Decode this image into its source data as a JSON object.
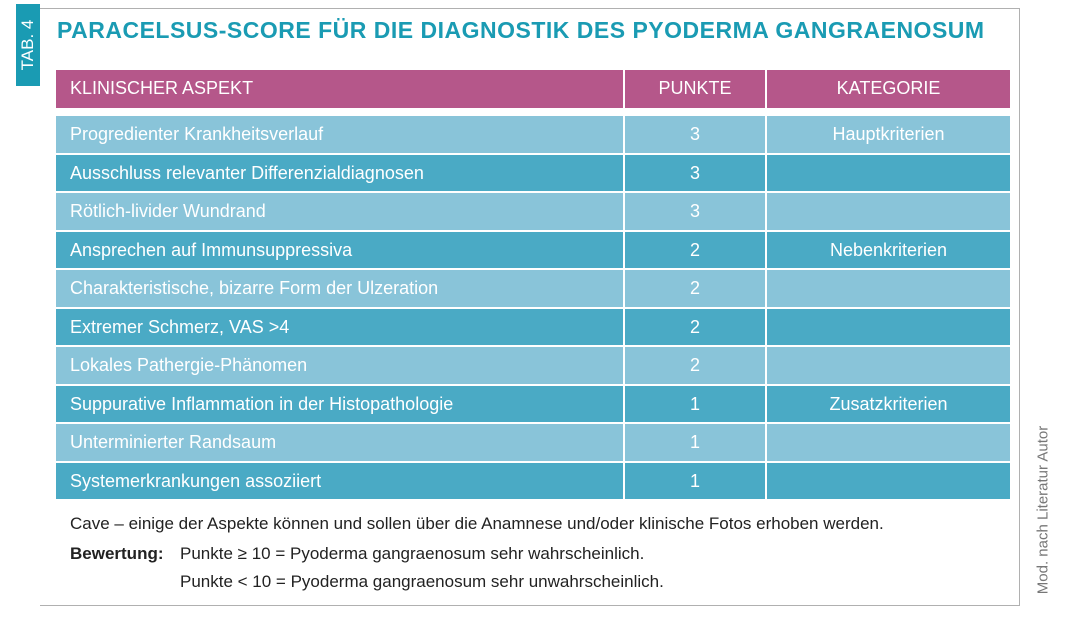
{
  "tab_label": "TAB. 4",
  "title": "PARACELSUS-SCORE FÜR DIE DIAGNOSTIK DES PYODERMA GANGRAENOSUM",
  "table": {
    "header": [
      "KLINISCHER ASPEKT",
      "PUNKTE",
      "KATEGORIE"
    ],
    "rows": [
      [
        "Progredienter Krankheitsverlauf",
        3,
        "Hauptkriterien"
      ],
      [
        "Ausschluss relevanter Differenzialdiagnosen",
        3,
        null
      ],
      [
        "Rötlich-livider Wundrand",
        3,
        null
      ],
      [
        "Ansprechen auf Immunsuppressiva",
        2,
        "Nebenkriterien"
      ],
      [
        "Charakteristische, bizarre Form der Ulzeration",
        2,
        null
      ],
      [
        "Extremer Schmerz, VAS >4",
        2,
        null
      ],
      [
        "Lokales Pathergie-Phänomen",
        2,
        null
      ],
      [
        "Suppurative Inflammation in der Histopathologie",
        1,
        "Zusatzkriterien"
      ],
      [
        "Unterminierter Randsaum",
        1,
        null
      ],
      [
        "Systemerkrankungen assoziiert",
        1,
        null
      ]
    ]
  },
  "footer": {
    "note": "Cave – einige der Aspekte können und sollen über die Anamnese und/oder klinische Fotos erhoben werden.",
    "rating_label": "Bewertung:",
    "rating_lines": [
      "Punkte ≥ 10 = Pyoderma gangraenosum sehr wahrscheinlich.",
      "Punkte < 10 = Pyoderma gangraenosum sehr unwahrscheinlich."
    ]
  },
  "source": "Mod. nach Literatur Autor"
}
